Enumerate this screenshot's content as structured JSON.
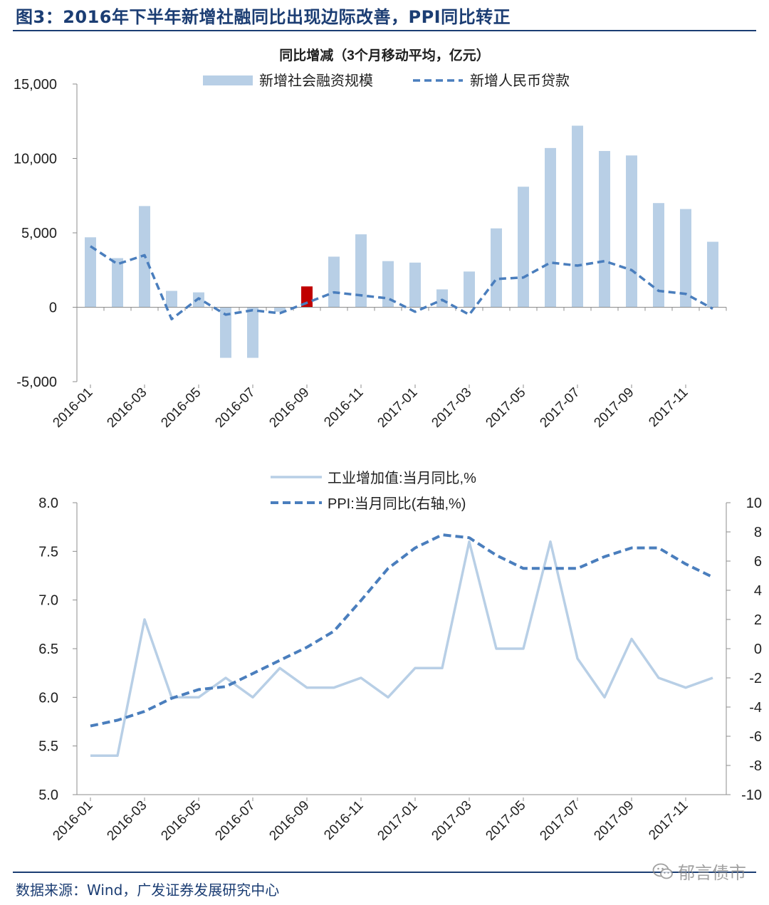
{
  "page": {
    "figure_title": "图3：2016年下半年新增社融同比出现边际改善，PPI同比转正",
    "source": "数据来源：Wind，广发证券发展研究中心",
    "watermark": "郁言债市",
    "watermark_icon": "wechat-icon"
  },
  "colors": {
    "title_blue": "#1b3d73",
    "bar": "#b8cfe6",
    "bar_highlight": "#c00000",
    "line_dark": "#4a7ebd",
    "line_light": "#b8cfe6",
    "axis": "#8c8c8c"
  },
  "chart_data": [
    {
      "type": "bar",
      "title": "同比增减（3个月移动平均，亿元）",
      "x": [
        "2016-01",
        "2016-02",
        "2016-03",
        "2016-04",
        "2016-05",
        "2016-06",
        "2016-07",
        "2016-08",
        "2016-09",
        "2016-10",
        "2016-11",
        "2016-12",
        "2017-01",
        "2017-02",
        "2017-03",
        "2017-04",
        "2017-05",
        "2017-06",
        "2017-07",
        "2017-08",
        "2017-09",
        "2017-10",
        "2017-11",
        "2017-12"
      ],
      "x_tick_labels": [
        "2016-01",
        "2016-03",
        "2016-05",
        "2016-07",
        "2016-09",
        "2016-11",
        "2017-01",
        "2017-03",
        "2017-05",
        "2017-07",
        "2017-09",
        "2017-11"
      ],
      "ylim": [
        -5000,
        15000
      ],
      "y_ticks": [
        "-5,000",
        "0",
        "5,000",
        "10,000",
        "15,000"
      ],
      "highlight_index": 8,
      "legend_position": "top-center",
      "series": [
        {
          "name": "新增社会融资规模",
          "kind": "bar",
          "values": [
            4700,
            3300,
            6800,
            1100,
            1000,
            -3400,
            -3400,
            -300,
            1400,
            3400,
            4900,
            3100,
            3000,
            1200,
            2400,
            5300,
            8100,
            10700,
            12200,
            10500,
            10200,
            7000,
            6600,
            4400
          ]
        },
        {
          "name": "新增人民币贷款",
          "kind": "dashed-line",
          "values": [
            4100,
            2900,
            3500,
            -800,
            600,
            -500,
            -200,
            -400,
            300,
            1000,
            800,
            600,
            -300,
            500,
            -500,
            1900,
            2000,
            3000,
            2800,
            3100,
            2500,
            1100,
            900,
            -100
          ]
        }
      ]
    },
    {
      "type": "line",
      "x": [
        "2016-01",
        "2016-02",
        "2016-03",
        "2016-04",
        "2016-05",
        "2016-06",
        "2016-07",
        "2016-08",
        "2016-09",
        "2016-10",
        "2016-11",
        "2016-12",
        "2017-01",
        "2017-02",
        "2017-03",
        "2017-04",
        "2017-05",
        "2017-06",
        "2017-07",
        "2017-08",
        "2017-09",
        "2017-10",
        "2017-11",
        "2017-12"
      ],
      "x_tick_labels": [
        "2016-01",
        "2016-03",
        "2016-05",
        "2016-07",
        "2016-09",
        "2016-11",
        "2017-01",
        "2017-03",
        "2017-05",
        "2017-07",
        "2017-09",
        "2017-11"
      ],
      "ylim_left": [
        5.0,
        8.0
      ],
      "y_ticks_left": [
        "5.0",
        "5.5",
        "6.0",
        "6.5",
        "7.0",
        "7.5",
        "8.0"
      ],
      "ylim_right": [
        -10,
        10
      ],
      "y_ticks_right": [
        "-10",
        "-8",
        "-6",
        "-4",
        "-2",
        "0",
        "2",
        "4",
        "6",
        "8",
        "10"
      ],
      "legend_position": "top-center",
      "series": [
        {
          "name": "工业增加值:当月同比,%",
          "kind": "solid-line",
          "axis": "left",
          "values": [
            5.4,
            5.4,
            6.8,
            6.0,
            6.0,
            6.2,
            6.0,
            6.3,
            6.1,
            6.1,
            6.2,
            6.0,
            6.3,
            6.3,
            7.6,
            6.5,
            6.5,
            7.6,
            6.4,
            6.0,
            6.6,
            6.2,
            6.1,
            6.2
          ]
        },
        {
          "name": "PPI:当月同比(右轴,%)",
          "kind": "dashed-line",
          "axis": "right",
          "values": [
            -5.3,
            -4.9,
            -4.3,
            -3.4,
            -2.8,
            -2.6,
            -1.7,
            -0.8,
            0.1,
            1.2,
            3.3,
            5.5,
            6.9,
            7.8,
            7.6,
            6.4,
            5.5,
            5.5,
            5.5,
            6.3,
            6.9,
            6.9,
            5.8,
            4.9
          ]
        }
      ]
    }
  ]
}
